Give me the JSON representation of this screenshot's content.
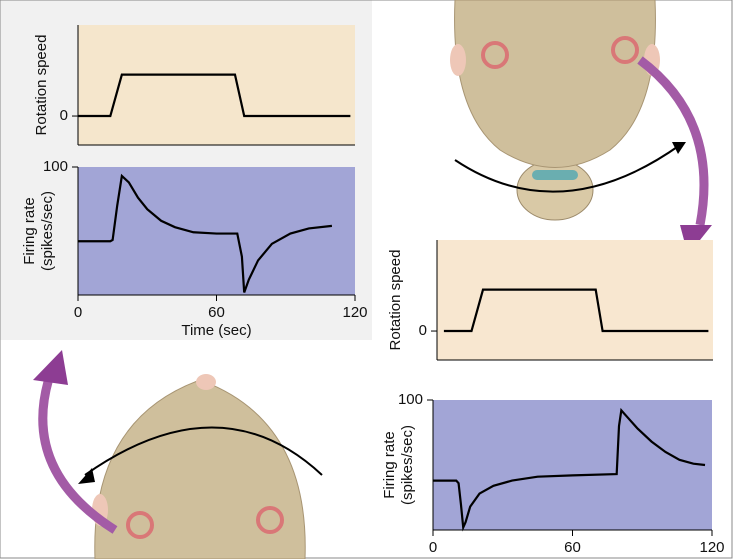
{
  "chart_data": [
    {
      "type": "line",
      "ylabel": "Rotation speed",
      "x": [
        0,
        14,
        19,
        68,
        72,
        118
      ],
      "values": [
        0,
        0,
        1,
        1,
        0,
        0
      ],
      "color": "#000000",
      "background": "#f5e6cc",
      "xlim": [
        0,
        120
      ],
      "ylim": [
        -0.7,
        2.2
      ],
      "yticks": [
        0
      ],
      "grid": false
    },
    {
      "type": "line",
      "ylabel": [
        "Firing rate",
        "(spikes/sec)"
      ],
      "xlabel": "Time (sec)",
      "x": [
        0,
        14,
        15,
        17,
        19,
        22,
        26,
        30,
        36,
        42,
        50,
        60,
        68,
        69,
        71,
        72,
        74,
        78,
        84,
        92,
        100,
        110
      ],
      "values": [
        42,
        42,
        43,
        70,
        93,
        88,
        76,
        67,
        58,
        53,
        49,
        48,
        48,
        48,
        30,
        2,
        12,
        27,
        40,
        48,
        52,
        54
      ],
      "color": "#000000",
      "background": "#a2a5d6",
      "xlim": [
        0,
        120
      ],
      "ylim": [
        0,
        100
      ],
      "xticks": [
        0,
        60,
        120
      ],
      "yticks": [
        100
      ],
      "grid": false
    },
    {
      "type": "line",
      "ylabel": "Rotation speed",
      "x": [
        3,
        15,
        20,
        69,
        72,
        118
      ],
      "values": [
        0,
        0,
        1,
        1,
        0,
        0
      ],
      "color": "#000000",
      "background": "#f8e7d0",
      "xlim": [
        0,
        120
      ],
      "ylim": [
        -0.7,
        2.2
      ],
      "yticks": [
        0
      ],
      "grid": false
    },
    {
      "type": "line",
      "ylabel": [
        "Firing rate",
        "(spikes/sec)"
      ],
      "x": [
        0,
        10,
        11,
        12,
        13,
        14,
        16,
        20,
        26,
        34,
        45,
        60,
        79,
        80,
        81,
        84,
        88,
        94,
        100,
        106,
        112,
        117
      ],
      "values": [
        38,
        38,
        36,
        20,
        2,
        6,
        18,
        28,
        34,
        38,
        41,
        42,
        43,
        80,
        92,
        86,
        78,
        68,
        60,
        54,
        51,
        50
      ],
      "color": "#000000",
      "background": "#a2a5d6",
      "xlim": [
        0,
        120
      ],
      "ylim": [
        0,
        100
      ],
      "xticks": [
        0,
        60,
        120
      ],
      "yticks": [
        100
      ],
      "grid": false
    }
  ]
}
